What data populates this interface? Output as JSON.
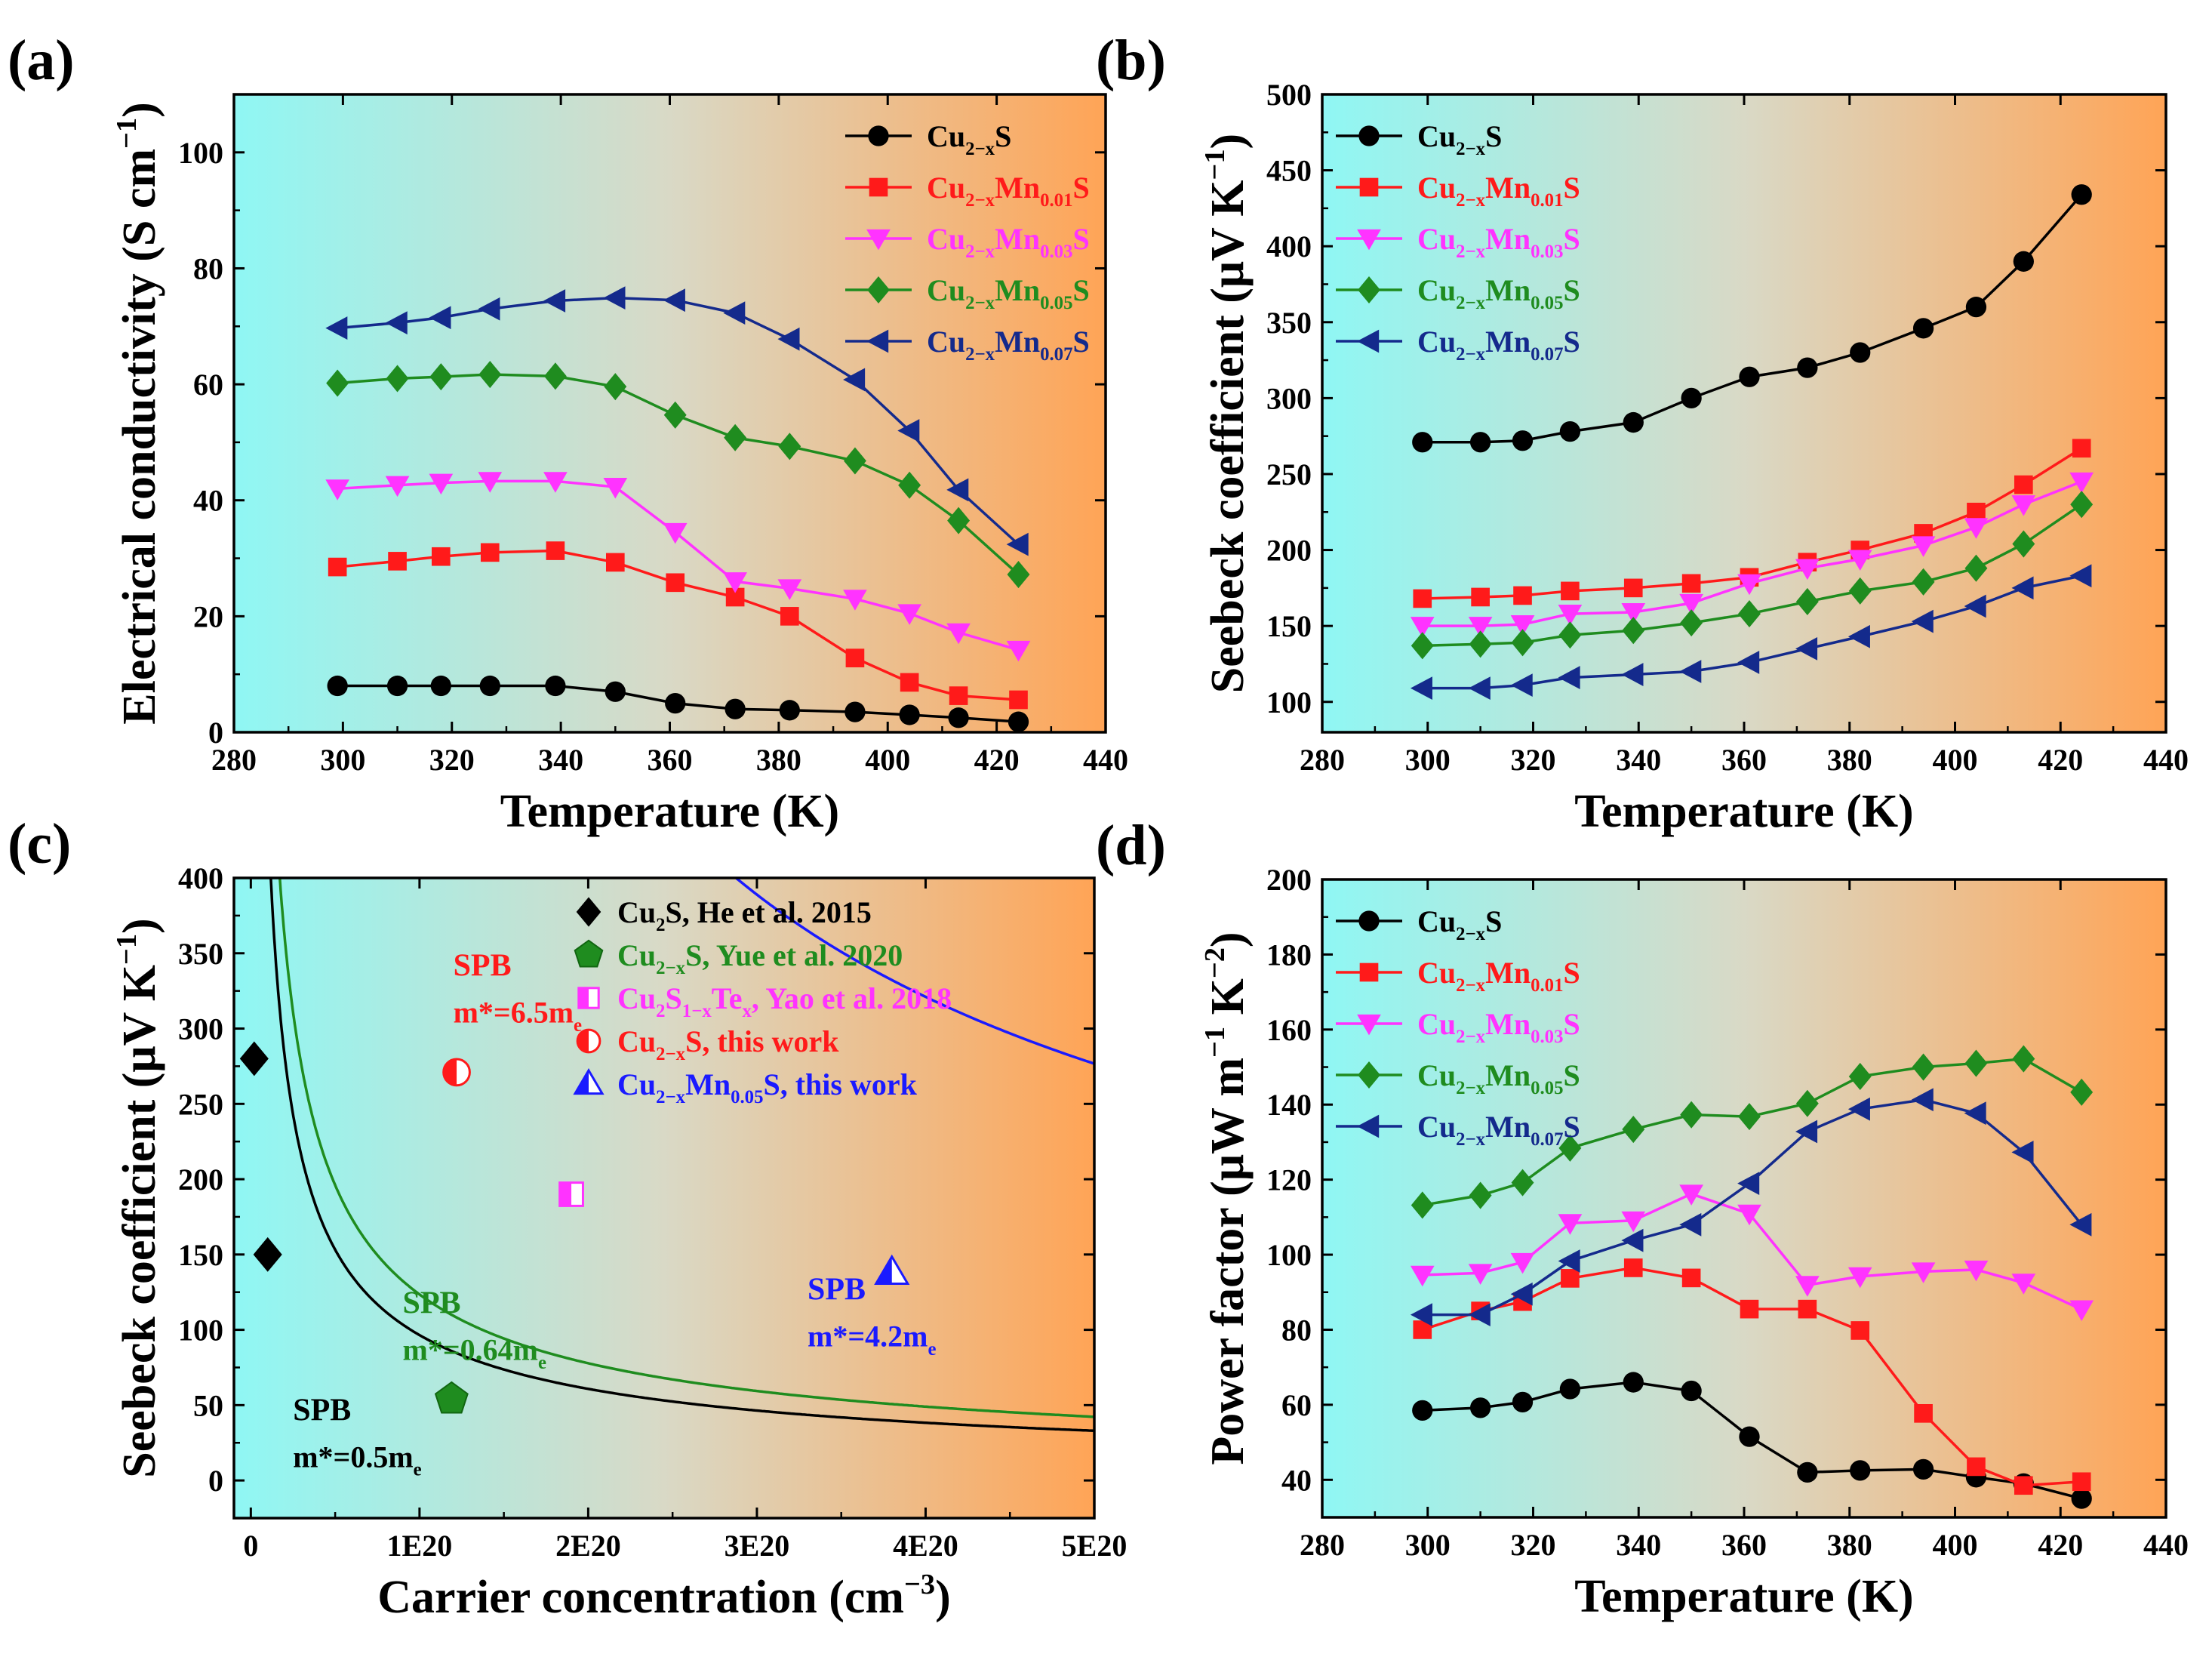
{
  "chart_data": [
    {
      "panel_label": "(a)",
      "type": "line",
      "xlabel": "Temperature (K)",
      "ylabel": {
        "base": "Electrical conductivity (S cm",
        "sup": "−1",
        "end": ")"
      },
      "xlim": [
        280,
        440
      ],
      "ylim": [
        0,
        110
      ],
      "xticks": [
        280,
        300,
        320,
        340,
        360,
        380,
        400,
        420,
        440
      ],
      "yticks": [
        0,
        20,
        40,
        60,
        80,
        100
      ],
      "legend_position": "top-right",
      "x": [
        299,
        310,
        318,
        327,
        339,
        350,
        361,
        372,
        382,
        394,
        404,
        413,
        424
      ],
      "series": [
        {
          "name": "Cu2−xS",
          "label": [
            [
              "Cu",
              "n"
            ],
            [
              "2−x",
              "sub"
            ],
            [
              "S",
              "n"
            ]
          ],
          "color": "#000000",
          "marker": "circle",
          "values": [
            8,
            8,
            8,
            8,
            8,
            7,
            5,
            4,
            3.8,
            3.5,
            3,
            2.5,
            1.8
          ]
        },
        {
          "name": "Cu2−xMn0.01S",
          "label": [
            [
              "Cu",
              "n"
            ],
            [
              "2−x",
              "sub"
            ],
            [
              "Mn",
              "n"
            ],
            [
              "0.01",
              "sub"
            ],
            [
              "S",
              "n"
            ]
          ],
          "color": "#ff1a1a",
          "marker": "square",
          "values": [
            28.5,
            29.5,
            30.3,
            31,
            31.3,
            29.3,
            25.8,
            23.3,
            20,
            12.8,
            8.6,
            6.3,
            5.6
          ]
        },
        {
          "name": "Cu2−xMn0.03S",
          "label": [
            [
              "Cu",
              "n"
            ],
            [
              "2−x",
              "sub"
            ],
            [
              "Mn",
              "n"
            ],
            [
              "0.03",
              "sub"
            ],
            [
              "S",
              "n"
            ]
          ],
          "color": "#ff33ff",
          "marker": "triangle-down",
          "values": [
            42,
            42.6,
            43,
            43.3,
            43.3,
            42.3,
            34.5,
            26,
            24.8,
            23,
            20.5,
            17.2,
            14.2
          ]
        },
        {
          "name": "Cu2−xMn0.05S",
          "label": [
            [
              "Cu",
              "n"
            ],
            [
              "2−x",
              "sub"
            ],
            [
              "Mn",
              "n"
            ],
            [
              "0.05",
              "sub"
            ],
            [
              "S",
              "n"
            ]
          ],
          "color": "#1f8c1f",
          "marker": "diamond",
          "values": [
            60.2,
            61,
            61.3,
            61.7,
            61.4,
            59.6,
            54.7,
            50.8,
            49.3,
            46.8,
            42.6,
            36.5,
            27.2
          ]
        },
        {
          "name": "Cu2−xMn0.07S",
          "label": [
            [
              "Cu",
              "n"
            ],
            [
              "2−x",
              "sub"
            ],
            [
              "Mn",
              "n"
            ],
            [
              "0.07",
              "sub"
            ],
            [
              "S",
              "n"
            ]
          ],
          "color": "#142a8c",
          "marker": "triangle-left",
          "values": [
            69.7,
            70.6,
            71.5,
            73,
            74.4,
            74.9,
            74.5,
            72.3,
            67.8,
            60.8,
            52,
            41.8,
            32.4
          ]
        }
      ]
    },
    {
      "panel_label": "(b)",
      "type": "line",
      "xlabel": "Temperature (K)",
      "ylabel": {
        "base": "Seebeck coefficient (μV K",
        "sup": "−1",
        "end": ")"
      },
      "xlim": [
        280,
        440
      ],
      "ylim": [
        80,
        500
      ],
      "xticks": [
        280,
        300,
        320,
        340,
        360,
        380,
        400,
        420,
        440
      ],
      "yticks": [
        100,
        150,
        200,
        250,
        300,
        350,
        400,
        450,
        500
      ],
      "legend_position": "top-left",
      "x": [
        299,
        310,
        318,
        327,
        339,
        350,
        361,
        372,
        382,
        394,
        404,
        413,
        424
      ],
      "series": [
        {
          "name": "Cu2−xS",
          "label": [
            [
              "Cu",
              "n"
            ],
            [
              "2−x",
              "sub"
            ],
            [
              "S",
              "n"
            ]
          ],
          "color": "#000000",
          "marker": "circle",
          "values": [
            271,
            271,
            272,
            278,
            284,
            300,
            314,
            320,
            330,
            346,
            360,
            390,
            434
          ]
        },
        {
          "name": "Cu2−xMn0.01S",
          "label": [
            [
              "Cu",
              "n"
            ],
            [
              "2−x",
              "sub"
            ],
            [
              "Mn",
              "n"
            ],
            [
              "0.01",
              "sub"
            ],
            [
              "S",
              "n"
            ]
          ],
          "color": "#ff1a1a",
          "marker": "square",
          "values": [
            168,
            169,
            170,
            173,
            175,
            178,
            182,
            192,
            200,
            211,
            225,
            243,
            267
          ]
        },
        {
          "name": "Cu2−xMn0.03S",
          "label": [
            [
              "Cu",
              "n"
            ],
            [
              "2−x",
              "sub"
            ],
            [
              "Mn",
              "n"
            ],
            [
              "0.03",
              "sub"
            ],
            [
              "S",
              "n"
            ]
          ],
          "color": "#ff33ff",
          "marker": "triangle-down",
          "values": [
            150,
            150,
            151,
            158,
            159,
            165,
            178,
            188,
            194,
            203,
            215,
            230,
            245
          ]
        },
        {
          "name": "Cu2−xMn0.05S",
          "label": [
            [
              "Cu",
              "n"
            ],
            [
              "2−x",
              "sub"
            ],
            [
              "Mn",
              "n"
            ],
            [
              "0.05",
              "sub"
            ],
            [
              "S",
              "n"
            ]
          ],
          "color": "#1f8c1f",
          "marker": "diamond",
          "values": [
            137,
            138,
            139,
            144,
            147,
            152,
            158,
            166,
            173,
            179,
            188,
            204,
            230
          ]
        },
        {
          "name": "Cu2−xMn0.07S",
          "label": [
            [
              "Cu",
              "n"
            ],
            [
              "2−x",
              "sub"
            ],
            [
              "Mn",
              "n"
            ],
            [
              "0.07",
              "sub"
            ],
            [
              "S",
              "n"
            ]
          ],
          "color": "#142a8c",
          "marker": "triangle-left",
          "values": [
            109,
            109,
            111,
            116,
            118,
            120,
            126,
            135,
            143,
            153,
            163,
            175,
            183
          ]
        }
      ]
    },
    {
      "panel_label": "(c)",
      "type": "scatter",
      "xlabel": {
        "base": "Carrier concentration (cm",
        "sup": "−3",
        "end": ")"
      },
      "ylabel": {
        "base": "Seebeck coefficient (μV K",
        "sup": "−1",
        "end": ")"
      },
      "xlim": [
        -0.1,
        5.0
      ],
      "ylim": [
        -25,
        400
      ],
      "x_unit_note": "x values in units of 1E20 cm-3",
      "xticks": [
        0,
        1,
        2,
        3,
        4,
        5
      ],
      "xticklabels": [
        "0",
        "1E20",
        "2E20",
        "3E20",
        "4E20",
        "5E20"
      ],
      "yticks": [
        0,
        50,
        100,
        150,
        200,
        250,
        300,
        350,
        400
      ],
      "legend_position": "top-right",
      "curves": [
        {
          "name": "SPB m*=6.5me",
          "color": "#ff1a1a",
          "constant": 1245,
          "text_line1": "SPB",
          "text_line2": [
            [
              "m*=6.5m",
              "n"
            ],
            [
              "e",
              "sub"
            ]
          ],
          "text_at": [
            1.2,
            335
          ]
        },
        {
          "name": "SPB m*=4.2me",
          "color": "#1a1aff",
          "constant": 809,
          "text_line1": "SPB",
          "text_line2": [
            [
              "m*=4.2m",
              "n"
            ],
            [
              "e",
              "sub"
            ]
          ],
          "text_at": [
            3.3,
            120
          ]
        },
        {
          "name": "SPB m*=0.64me",
          "color": "#1f8c1f",
          "constant": 123.5,
          "text_line1": "SPB",
          "text_line2": [
            [
              "m*=0.64m",
              "n"
            ],
            [
              "e",
              "sub"
            ]
          ],
          "text_at": [
            0.9,
            111
          ]
        },
        {
          "name": "SPB m*=0.5me",
          "color": "#000000",
          "constant": 96.5,
          "text_line1": "SPB",
          "text_line2": [
            [
              "m*=0.5m",
              "n"
            ],
            [
              "e",
              "sub"
            ]
          ],
          "text_at": [
            0.25,
            40
          ]
        }
      ],
      "points": [
        {
          "name": "Cu2S, He et al. 2015",
          "label": [
            [
              "Cu",
              "n"
            ],
            [
              "2",
              "sub"
            ],
            [
              "S, He et al. 2015",
              "n"
            ]
          ],
          "color": "#000000",
          "marker": "diamond",
          "x": [
            0.02,
            0.1
          ],
          "y": [
            280,
            150
          ]
        },
        {
          "name": "Cu2−xS, Yue et al. 2020",
          "label": [
            [
              "Cu",
              "n"
            ],
            [
              "2−x",
              "sub"
            ],
            [
              "S, Yue et al. 2020",
              "n"
            ]
          ],
          "color": "#1f8c1f",
          "marker": "pentagon",
          "x": [
            1.19
          ],
          "y": [
            54
          ]
        },
        {
          "name": "Cu2S1−xTex, Yao et al. 2018",
          "label": [
            [
              "Cu",
              "n"
            ],
            [
              "2",
              "sub"
            ],
            [
              "S",
              "n"
            ],
            [
              "1−x",
              "sub"
            ],
            [
              "Te",
              "n"
            ],
            [
              "x",
              "sub"
            ],
            [
              ", Yao et al. 2018",
              "n"
            ]
          ],
          "color": "#ff33ff",
          "marker": "half-square",
          "x": [
            1.9
          ],
          "y": [
            190
          ]
        },
        {
          "name": "Cu2−xS, this work",
          "label": [
            [
              "Cu",
              "n"
            ],
            [
              "2−x",
              "sub"
            ],
            [
              "S, this work",
              "n"
            ]
          ],
          "color": "#ff1a1a",
          "marker": "half-circle",
          "x": [
            1.22
          ],
          "y": [
            271
          ]
        },
        {
          "name": "Cu2−xMn0.05S, this work",
          "label": [
            [
              "Cu",
              "n"
            ],
            [
              "2−x",
              "sub"
            ],
            [
              "Mn",
              "n"
            ],
            [
              "0.05",
              "sub"
            ],
            [
              "S, this work",
              "n"
            ]
          ],
          "color": "#1a1aff",
          "marker": "half-triangle",
          "x": [
            3.8
          ],
          "y": [
            138
          ]
        }
      ]
    },
    {
      "panel_label": "(d)",
      "type": "line",
      "xlabel": "Temperature (K)",
      "ylabel": {
        "base": "Power factor (μW m",
        "sup": "−1",
        "mid": " K",
        "sup2": "−2",
        "end": ")"
      },
      "xlim": [
        280,
        440
      ],
      "ylim": [
        30,
        200
      ],
      "xticks": [
        280,
        300,
        320,
        340,
        360,
        380,
        400,
        420,
        440
      ],
      "yticks": [
        40,
        60,
        80,
        100,
        120,
        140,
        160,
        180,
        200
      ],
      "legend_position": "top-left",
      "x": [
        299,
        310,
        318,
        327,
        339,
        350,
        361,
        372,
        382,
        394,
        404,
        413,
        424
      ],
      "series": [
        {
          "name": "Cu2−xS",
          "label": [
            [
              "Cu",
              "n"
            ],
            [
              "2−x",
              "sub"
            ],
            [
              "S",
              "n"
            ]
          ],
          "color": "#000000",
          "marker": "circle",
          "values": [
            58.5,
            59.2,
            60.7,
            64.2,
            66,
            63.7,
            51.5,
            42,
            42.5,
            42.8,
            40.7,
            39,
            35
          ]
        },
        {
          "name": "Cu2−xMn0.01S",
          "label": [
            [
              "Cu",
              "n"
            ],
            [
              "2−x",
              "sub"
            ],
            [
              "Mn",
              "n"
            ],
            [
              "0.01",
              "sub"
            ],
            [
              "S",
              "n"
            ]
          ],
          "color": "#ff1a1a",
          "marker": "square",
          "values": [
            80,
            85,
            87.5,
            93.7,
            96.5,
            93.8,
            85.5,
            85.5,
            79.8,
            57.7,
            43.5,
            38.5,
            39.5
          ]
        },
        {
          "name": "Cu2−xMn0.03S",
          "label": [
            [
              "Cu",
              "n"
            ],
            [
              "2−x",
              "sub"
            ],
            [
              "Mn",
              "n"
            ],
            [
              "0.03",
              "sub"
            ],
            [
              "S",
              "n"
            ]
          ],
          "color": "#ff33ff",
          "marker": "triangle-down",
          "values": [
            94.6,
            95.1,
            98,
            108.4,
            109.1,
            116.2,
            110.9,
            91.9,
            94.2,
            95.5,
            96,
            92.5,
            85.4
          ]
        },
        {
          "name": "Cu2−xMn0.05S",
          "label": [
            [
              "Cu",
              "n"
            ],
            [
              "2−x",
              "sub"
            ],
            [
              "Mn",
              "n"
            ],
            [
              "0.05",
              "sub"
            ],
            [
              "S",
              "n"
            ]
          ],
          "color": "#1f8c1f",
          "marker": "diamond",
          "values": [
            113.2,
            115.8,
            119.2,
            128.4,
            133.4,
            137.3,
            136.8,
            140.3,
            147.5,
            150,
            151,
            152.2,
            143.3
          ]
        },
        {
          "name": "Cu2−xMn0.07S",
          "label": [
            [
              "Cu",
              "n"
            ],
            [
              "2−x",
              "sub"
            ],
            [
              "Mn",
              "n"
            ],
            [
              "0.07",
              "sub"
            ],
            [
              "S",
              "n"
            ]
          ],
          "color": "#142a8c",
          "marker": "triangle-left",
          "values": [
            84,
            84,
            89.5,
            98.3,
            103.8,
            108,
            119,
            132.8,
            138.8,
            141.3,
            137.7,
            127.3,
            108
          ]
        }
      ]
    }
  ],
  "colors": {
    "gradient_start": "#8ff7f4",
    "gradient_mid": "#d9d9c6",
    "gradient_end": "#ffa456",
    "frame": "#000000"
  }
}
